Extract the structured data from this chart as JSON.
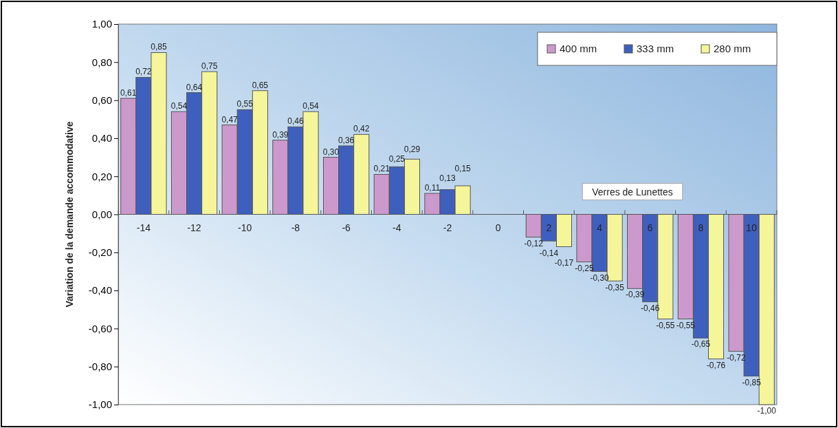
{
  "chart_data": {
    "type": "bar",
    "ylabel": "Variation de la demande accommodative",
    "categories": [
      "-14",
      "-12",
      "-10",
      "-8",
      "-6",
      "-4",
      "-2",
      "0",
      "2",
      "4",
      "6",
      "8",
      "10"
    ],
    "series": [
      {
        "name": "400 mm",
        "color": "#cc99cc",
        "values": [
          0.61,
          0.54,
          0.47,
          0.39,
          0.3,
          0.21,
          0.11,
          null,
          -0.12,
          -0.25,
          -0.39,
          -0.55,
          -0.72
        ],
        "value_labels": [
          "0,61",
          "0,54",
          "0,47",
          "0,39",
          "0,30",
          "0,21",
          "0,11",
          null,
          "-0,12",
          "-0,25",
          "-0,39",
          "-0,55",
          "-0,72"
        ]
      },
      {
        "name": "333 mm",
        "color": "#3f5fbf",
        "values": [
          0.72,
          0.64,
          0.55,
          0.46,
          0.36,
          0.25,
          0.13,
          null,
          -0.14,
          -0.3,
          -0.46,
          -0.65,
          -0.85
        ],
        "value_labels": [
          "0,72",
          "0,64",
          "0,55",
          "0,46",
          "0,36",
          "0,25",
          "0,13",
          null,
          "-0,14",
          "-0,30",
          "-0,46",
          "-0,65",
          "-0,85"
        ]
      },
      {
        "name": "280 mm",
        "color": "#f5f59a",
        "values": [
          0.85,
          0.75,
          0.65,
          0.54,
          0.42,
          0.29,
          0.15,
          null,
          -0.17,
          -0.35,
          -0.55,
          -0.76,
          -1.0
        ],
        "value_labels": [
          "0,85",
          "0,75",
          "0,65",
          "0,54",
          "0,42",
          "0,29",
          "0,15",
          null,
          "-0,17",
          "-0,35",
          "-0,55",
          "-0,76",
          "-1,00"
        ]
      }
    ],
    "ylim": [
      -1,
      1
    ],
    "yticks": [
      {
        "value": -1,
        "label": "-1,00"
      },
      {
        "value": -0.8,
        "label": "-0,80"
      },
      {
        "value": -0.6,
        "label": "-0,60"
      },
      {
        "value": -0.4,
        "label": "-0,40"
      },
      {
        "value": -0.2,
        "label": "-0,20"
      },
      {
        "value": 0,
        "label": "0,00"
      },
      {
        "value": 0.2,
        "label": "0,20"
      },
      {
        "value": 0.4,
        "label": "0,40"
      },
      {
        "value": 0.6,
        "label": "0,60"
      },
      {
        "value": 0.8,
        "label": "0,80"
      },
      {
        "value": 1,
        "label": "1,00"
      }
    ],
    "annotations": [
      "Verres de Lunettes"
    ],
    "legend": "top right"
  }
}
